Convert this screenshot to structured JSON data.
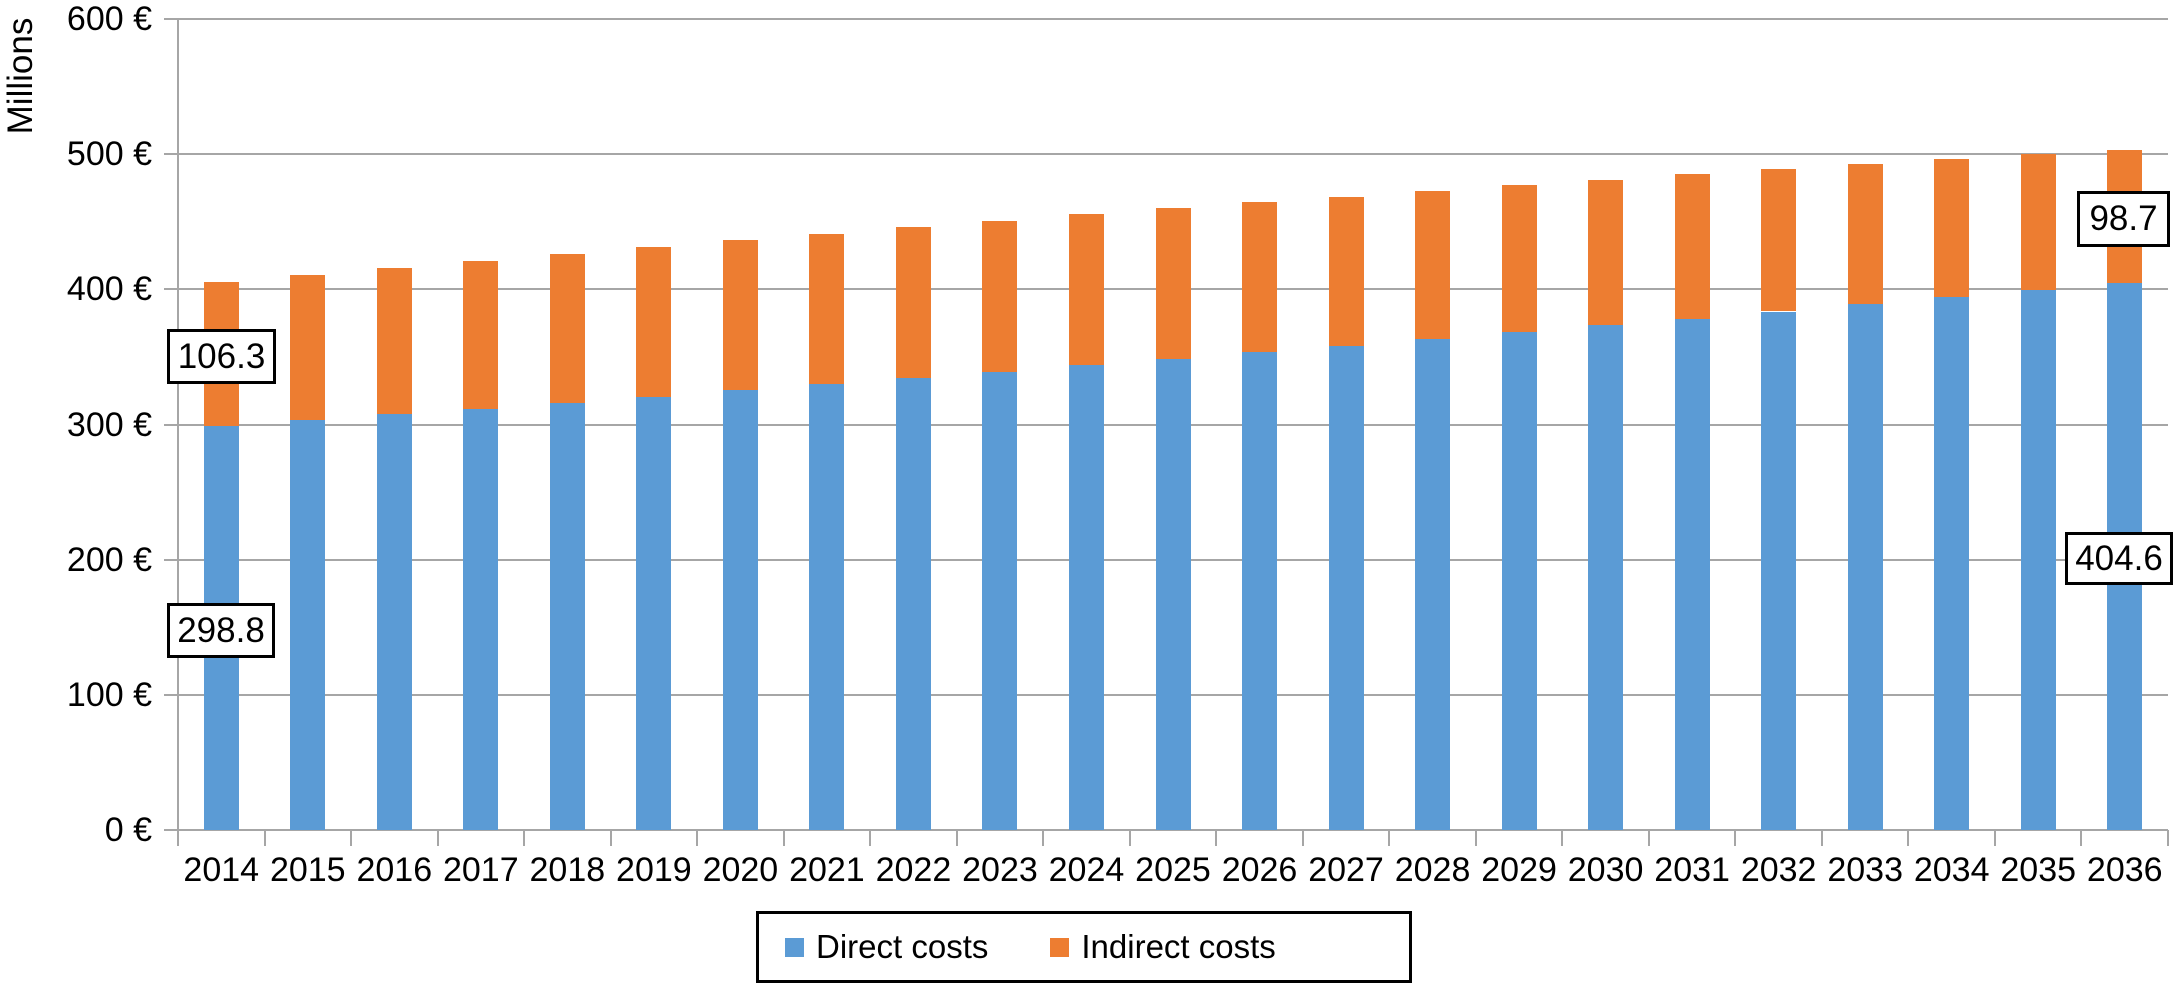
{
  "chart_data": {
    "type": "bar",
    "stacked": true,
    "ylabel": "Millions",
    "currency": "€",
    "categories": [
      "2014",
      "2015",
      "2016",
      "2017",
      "2018",
      "2019",
      "2020",
      "2021",
      "2022",
      "2023",
      "2024",
      "2025",
      "2026",
      "2027",
      "2028",
      "2029",
      "2030",
      "2031",
      "2032",
      "2033",
      "2034",
      "2035",
      "2036"
    ],
    "series": [
      {
        "name": "Direct costs",
        "color": "#5B9BD5",
        "values": [
          298.8,
          303.1,
          307.4,
          311.8,
          316.2,
          320.7,
          325.2,
          329.8,
          334.4,
          339.1,
          343.8,
          348.6,
          353.4,
          358.3,
          363.3,
          368.3,
          373.3,
          378.4,
          383.6,
          388.8,
          394.1,
          399.4,
          404.6
        ]
      },
      {
        "name": "Indirect costs",
        "color": "#ED7D31",
        "values": [
          106.3,
          107.5,
          108.5,
          109.4,
          110.2,
          110.8,
          111.2,
          111.5,
          111.7,
          111.7,
          111.6,
          111.3,
          110.9,
          110.3,
          109.6,
          108.8,
          107.8,
          106.6,
          105.3,
          103.9,
          102.3,
          100.6,
          98.7
        ]
      }
    ],
    "ylim": [
      0,
      600
    ],
    "ytick_labels": [
      "0 €",
      "100 €",
      "200 €",
      "300 €",
      "400 €",
      "500 €",
      "600 €"
    ],
    "grid": true,
    "legend_position": "bottom",
    "annotations": [
      {
        "text": "106.3",
        "refers_to": "Indirect costs 2014"
      },
      {
        "text": "298.8",
        "refers_to": "Direct costs 2014"
      },
      {
        "text": "98.7",
        "refers_to": "Indirect costs 2036"
      },
      {
        "text": "404.6",
        "refers_to": "Direct costs 2036"
      }
    ],
    "gridline_color": "#A6A6A6",
    "text_color": "#000000"
  }
}
